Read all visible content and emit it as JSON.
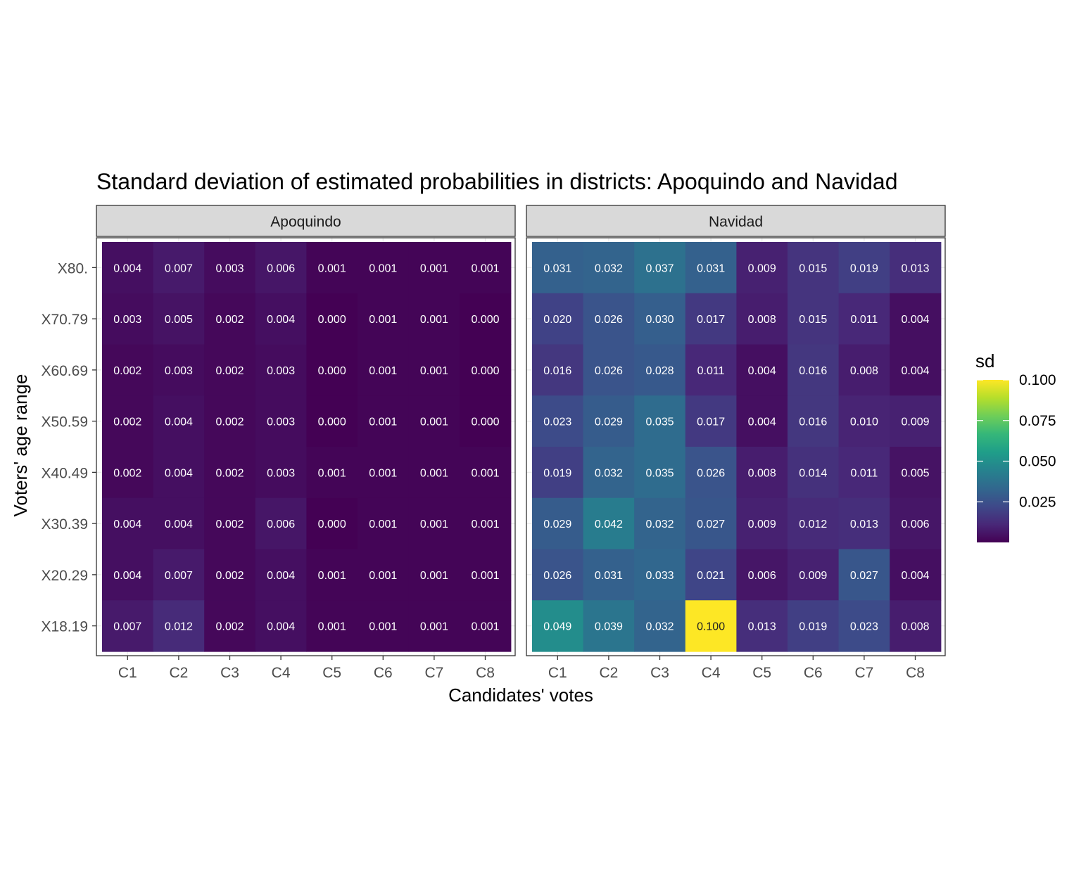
{
  "chart_data": {
    "type": "heatmap",
    "title": "Standard deviation of estimated probabilities in districts: Apoquindo and Navidad",
    "xlabel": "Candidates' votes",
    "ylabel": "Voters' age range",
    "x_categories": [
      "C1",
      "C2",
      "C3",
      "C4",
      "C5",
      "C6",
      "C7",
      "C8"
    ],
    "y_categories": [
      "X80.",
      "X70.79",
      "X60.69",
      "X50.59",
      "X40.49",
      "X30.39",
      "X20.29",
      "X18.19"
    ],
    "colorscale": "viridis",
    "color_range": [
      0,
      0.1
    ],
    "legend": {
      "title": "sd",
      "ticks": [
        0.025,
        0.05,
        0.075,
        0.1
      ],
      "tick_labels": [
        "0.025",
        "0.050",
        "0.075",
        "0.100"
      ],
      "position": "right"
    },
    "panels": [
      {
        "name": "Apoquindo",
        "values": [
          [
            0.004,
            0.007,
            0.003,
            0.006,
            0.001,
            0.001,
            0.001,
            0.001
          ],
          [
            0.003,
            0.005,
            0.002,
            0.004,
            0.0,
            0.001,
            0.001,
            0.0
          ],
          [
            0.002,
            0.003,
            0.002,
            0.003,
            0.0,
            0.001,
            0.001,
            0.0
          ],
          [
            0.002,
            0.004,
            0.002,
            0.003,
            0.0,
            0.001,
            0.001,
            0.0
          ],
          [
            0.002,
            0.004,
            0.002,
            0.003,
            0.001,
            0.001,
            0.001,
            0.001
          ],
          [
            0.004,
            0.004,
            0.002,
            0.006,
            0.0,
            0.001,
            0.001,
            0.001
          ],
          [
            0.004,
            0.007,
            0.002,
            0.004,
            0.001,
            0.001,
            0.001,
            0.001
          ],
          [
            0.007,
            0.012,
            0.002,
            0.004,
            0.001,
            0.001,
            0.001,
            0.001
          ]
        ]
      },
      {
        "name": "Navidad",
        "values": [
          [
            0.031,
            0.032,
            0.037,
            0.031,
            0.009,
            0.015,
            0.019,
            0.013
          ],
          [
            0.02,
            0.026,
            0.03,
            0.017,
            0.008,
            0.015,
            0.011,
            0.004
          ],
          [
            0.016,
            0.026,
            0.028,
            0.011,
            0.004,
            0.016,
            0.008,
            0.004
          ],
          [
            0.023,
            0.029,
            0.035,
            0.017,
            0.004,
            0.016,
            0.01,
            0.009
          ],
          [
            0.019,
            0.032,
            0.035,
            0.026,
            0.008,
            0.014,
            0.011,
            0.005
          ],
          [
            0.029,
            0.042,
            0.032,
            0.027,
            0.009,
            0.012,
            0.013,
            0.006
          ],
          [
            0.026,
            0.031,
            0.033,
            0.021,
            0.006,
            0.009,
            0.027,
            0.004
          ],
          [
            0.049,
            0.039,
            0.032,
            0.1,
            0.013,
            0.019,
            0.023,
            0.008
          ]
        ]
      }
    ],
    "grid": true
  }
}
